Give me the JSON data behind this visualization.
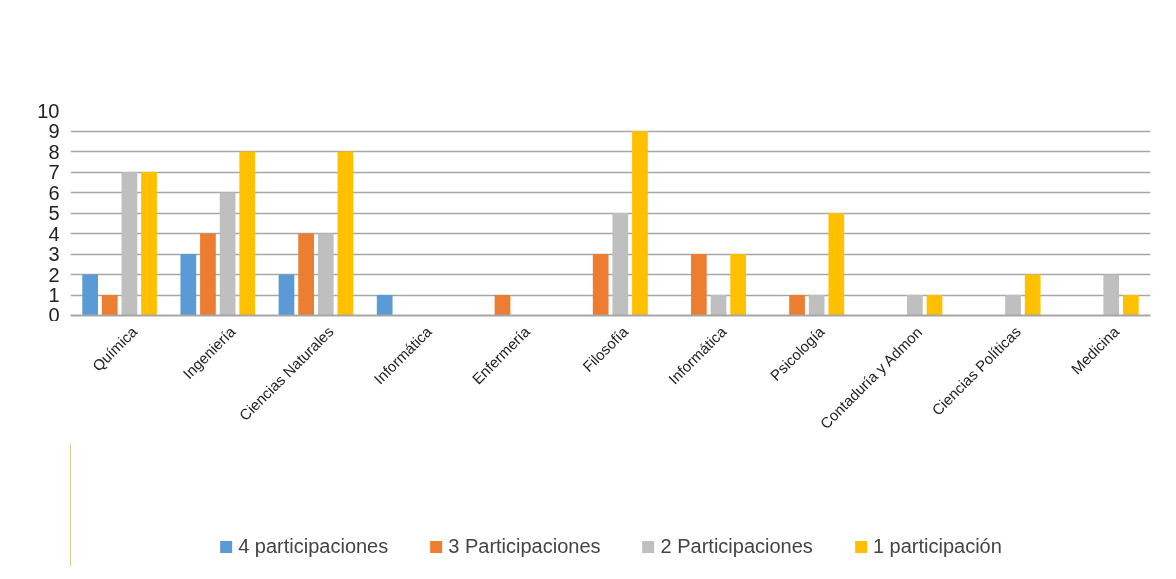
{
  "chart_data": {
    "type": "bar",
    "categories": [
      "Química",
      "Ingeniería",
      "Ciencias Naturales",
      "Informática",
      "Enfermería",
      "Filosofía",
      "Informática",
      "Psicología",
      "Contaduría y Admon",
      "Ciencias Políticas",
      "Medicina"
    ],
    "series": [
      {
        "name": "4 participaciones",
        "color": "#5b9bd5",
        "values": [
          2,
          3,
          2,
          1,
          0,
          0,
          0,
          0,
          0,
          0,
          0
        ]
      },
      {
        "name": "3 Participaciones",
        "color": "#ed7d31",
        "values": [
          1,
          4,
          4,
          0,
          1,
          3,
          3,
          1,
          0,
          0,
          0
        ]
      },
      {
        "name": "2 Participaciones",
        "color": "#bfbfbf",
        "values": [
          7,
          6,
          4,
          0,
          0,
          5,
          1,
          1,
          1,
          1,
          2
        ]
      },
      {
        "name": "1 participación",
        "color": "#ffc000",
        "values": [
          7,
          8,
          8,
          0,
          0,
          9,
          3,
          5,
          1,
          2,
          1
        ]
      }
    ],
    "ylim": [
      0,
      10
    ],
    "yticks": [
      0,
      1,
      2,
      3,
      4,
      5,
      6,
      7,
      8,
      9,
      10
    ],
    "grid": "y",
    "legend": "bottom"
  }
}
